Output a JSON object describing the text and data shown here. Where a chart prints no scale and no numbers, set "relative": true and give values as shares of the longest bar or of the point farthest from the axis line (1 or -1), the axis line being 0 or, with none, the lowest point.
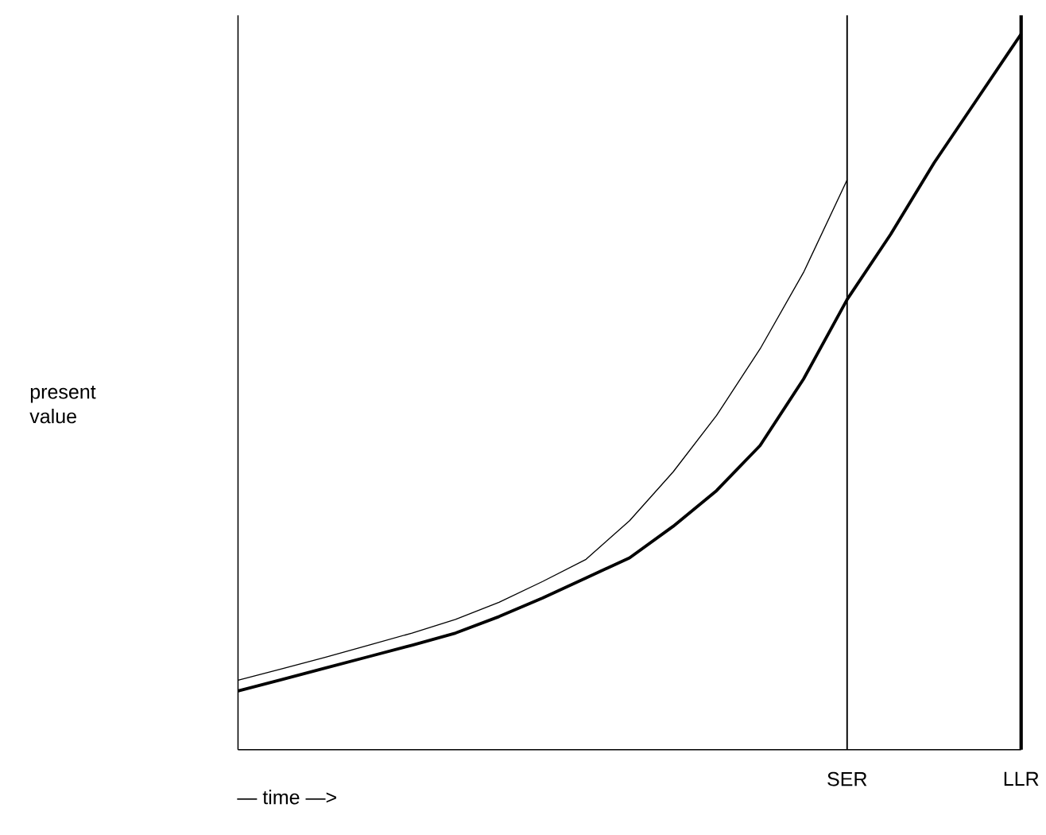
{
  "chart_data": {
    "type": "line",
    "relative": true,
    "xlabel": "— time —>",
    "annotations": [
      "present value"
    ],
    "categories": [
      null,
      null,
      null,
      null,
      null,
      null,
      null,
      null,
      null,
      null,
      null,
      null,
      null,
      null,
      "SER",
      null,
      null,
      null,
      "LLR"
    ],
    "series": [
      {
        "color": "#000000",
        "values": [
          0.097,
          0.113,
          0.129,
          0.146,
          0.163,
          0.182,
          0.206,
          0.235,
          0.266,
          0.32,
          0.388,
          0.467,
          0.56,
          0.667,
          0.796,
          null,
          null,
          null,
          null
        ]
      },
      {
        "color": "#000000",
        "values": [
          0.082,
          0.098,
          0.114,
          0.13,
          0.146,
          0.163,
          0.186,
          0.212,
          0.24,
          0.268,
          0.312,
          0.362,
          0.425,
          0.518,
          0.629,
          0.72,
          0.82,
          0.91,
          1
        ]
      }
    ],
    "ref_lines": [
      {
        "axis": "x",
        "value": "SER"
      },
      {
        "axis": "x",
        "value": "LLR"
      }
    ]
  }
}
